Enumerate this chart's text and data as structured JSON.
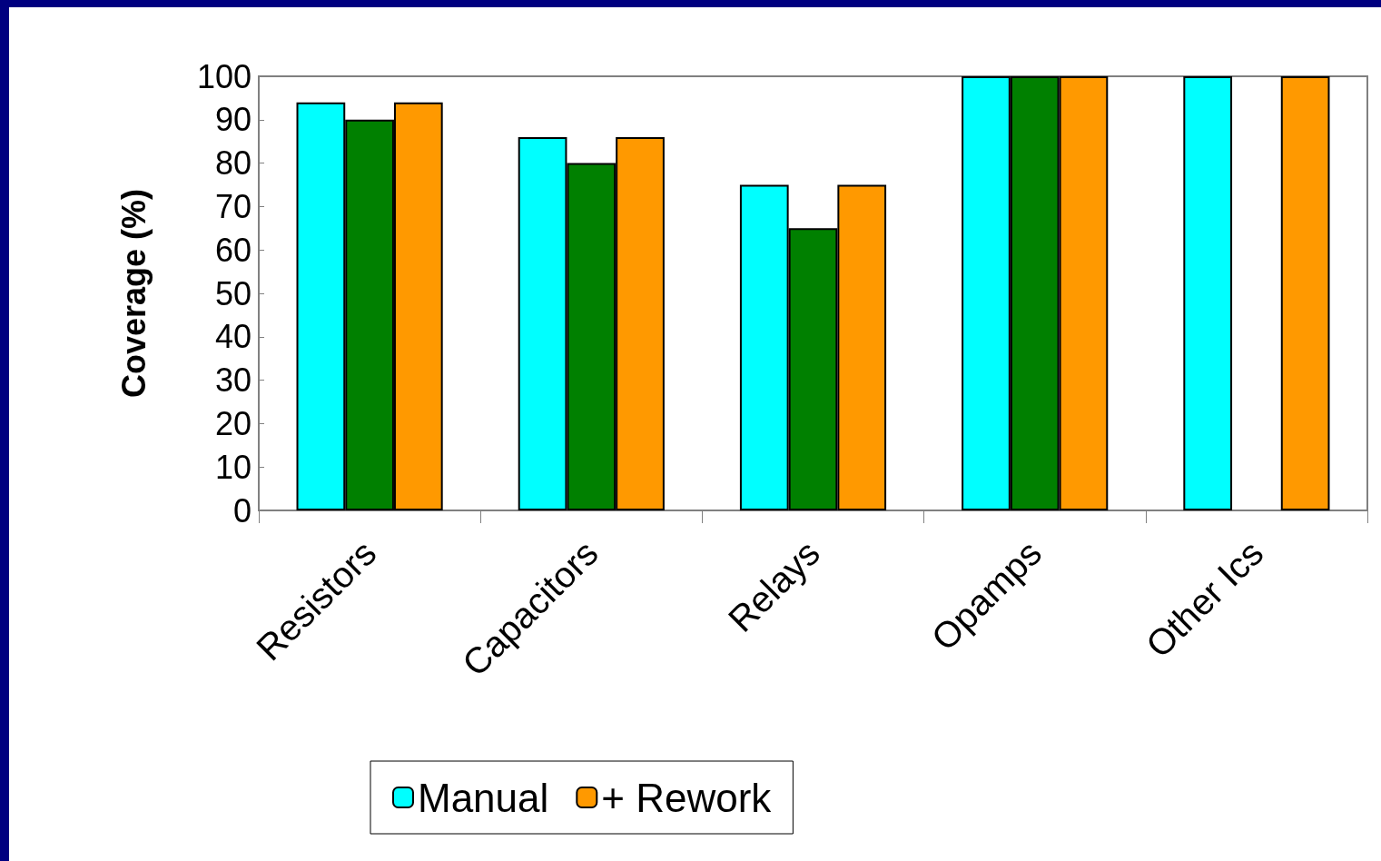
{
  "chart_data": {
    "type": "bar",
    "ylabel": "Coverage (%)",
    "categories": [
      "Resistors",
      "Capacitors",
      "Relays",
      "Opamps",
      "Other Ics"
    ],
    "series": [
      {
        "name": "Manual",
        "color": "#00ffff",
        "values": [
          94,
          86,
          75,
          100,
          100
        ]
      },
      {
        "color": "#008000",
        "values": [
          90,
          80,
          65,
          100,
          null
        ]
      },
      {
        "name": "+ Rework",
        "color": "#ff9900",
        "values": [
          94,
          86,
          75,
          100,
          100
        ]
      }
    ],
    "ylim": [
      0,
      100
    ],
    "yticks": [
      0,
      10,
      20,
      30,
      40,
      50,
      60,
      70,
      80,
      90,
      100
    ],
    "grid": false,
    "legend": "bottom"
  }
}
